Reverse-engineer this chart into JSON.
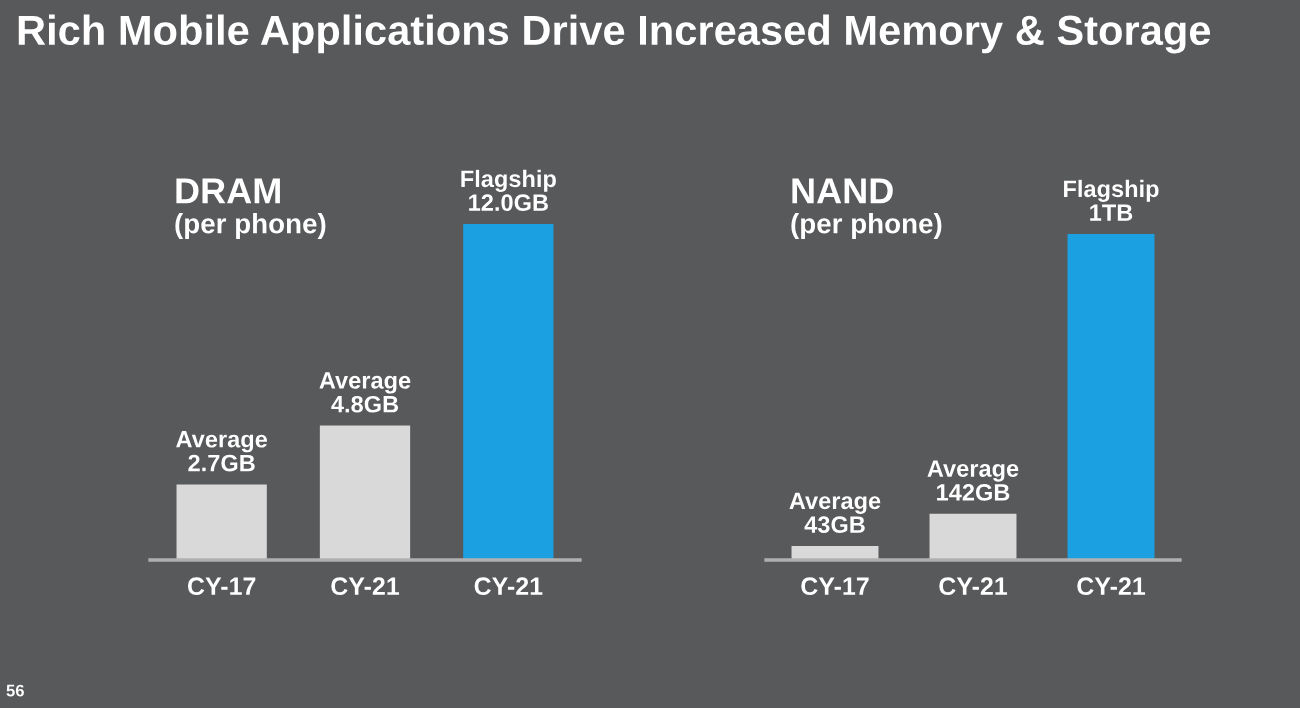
{
  "chart_data": [
    {
      "type": "bar",
      "title": "DRAM",
      "subtitle": "(per phone)",
      "categories": [
        "CY-17",
        "CY-21",
        "CY-21"
      ],
      "values": [
        2.7,
        4.8,
        12.0
      ],
      "colors": [
        "#d9d9d9",
        "#d9d9d9",
        "#1ba1e2"
      ],
      "value_labels": [
        "Average\n2.7GB",
        "Average\n4.8GB",
        "Flagship\n12.0GB"
      ],
      "annotations": [
        "Rich Mobile Applications Drive Increased Memory & Storage",
        "56"
      ],
      "grid": false,
      "legend": false
    },
    {
      "type": "bar",
      "title": "NAND",
      "subtitle": "(per phone)",
      "categories": [
        "CY-17",
        "CY-21",
        "CY-21"
      ],
      "values": [
        43,
        142,
        1000
      ],
      "colors": [
        "#d9d9d9",
        "#d9d9d9",
        "#1ba1e2"
      ],
      "value_labels": [
        "Average\n43GB",
        "Average\n142GB",
        "Flagship\n1TB"
      ],
      "grid": false,
      "legend": false
    }
  ]
}
